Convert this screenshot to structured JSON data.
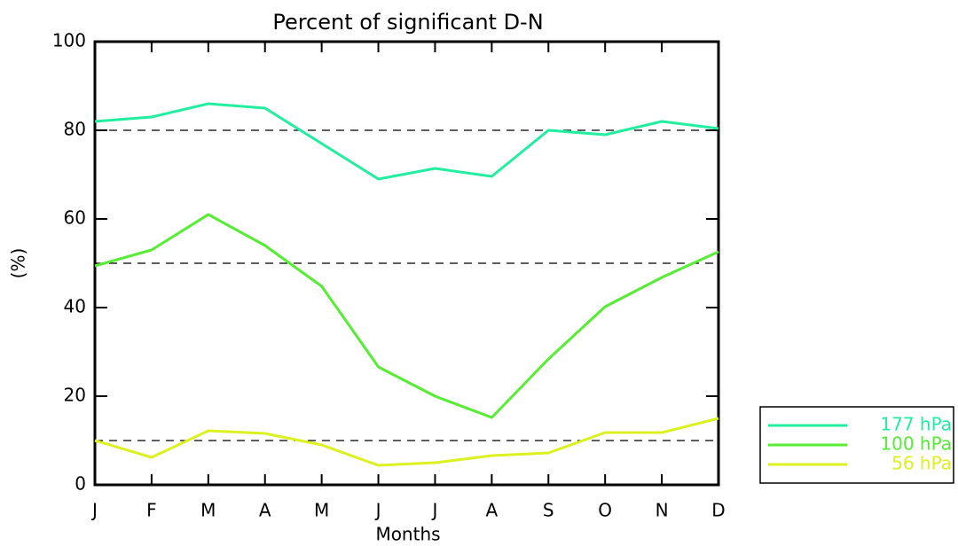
{
  "chart_data": {
    "type": "line",
    "title": "Percent of significant D-N",
    "x_label": "Months",
    "y_label": "(%)",
    "categories": [
      "J",
      "F",
      "M",
      "A",
      "M",
      "J",
      "J",
      "A",
      "S",
      "O",
      "N",
      "D"
    ],
    "series": [
      {
        "name": "177 hPa",
        "color": "#22eea0",
        "values": [
          82,
          83,
          86,
          85,
          77,
          69,
          71.4,
          69.6,
          80,
          79,
          82,
          80.4
        ]
      },
      {
        "name": "100 hPa",
        "color": "#55ee33",
        "values": [
          49.4,
          53,
          61,
          54,
          44.8,
          26.6,
          20,
          15.2,
          28.4,
          40.2,
          46.8,
          52.6
        ]
      },
      {
        "name": "56 hPa",
        "color": "#ddf020",
        "values": [
          10,
          6.2,
          12.2,
          11.6,
          9,
          4.4,
          5,
          6.6,
          7.2,
          11.8,
          11.8,
          15
        ]
      }
    ],
    "reference_lines": [
      80,
      50,
      10
    ],
    "ylim": [
      0,
      100
    ],
    "yticks": [
      0,
      20,
      40,
      60,
      80,
      100
    ],
    "legend": "outside-lower-right"
  }
}
